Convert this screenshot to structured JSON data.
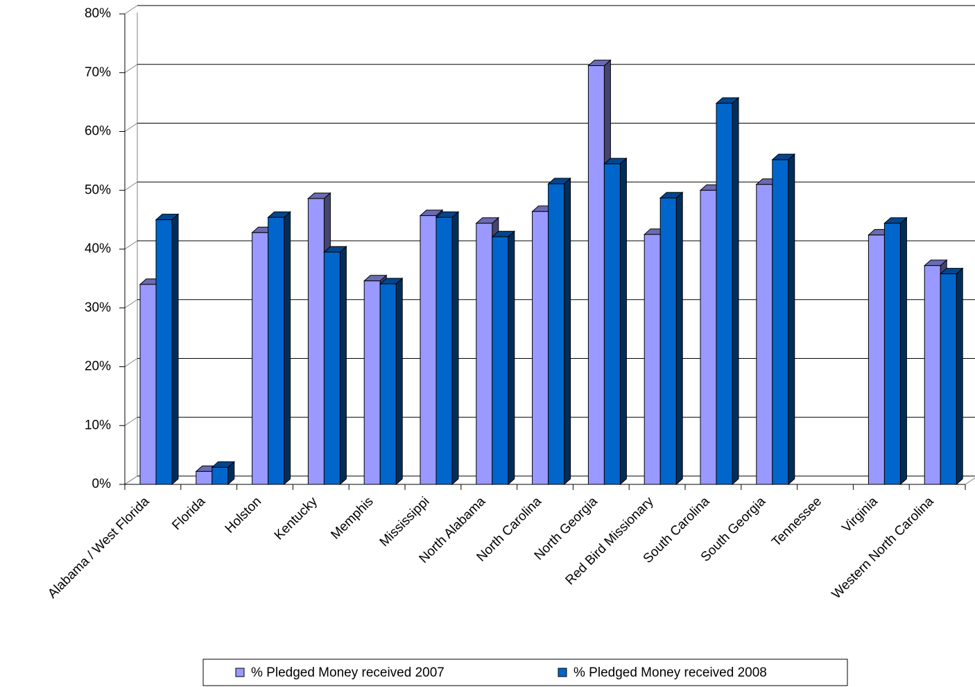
{
  "chart_data": {
    "type": "bar3d",
    "categories": [
      "Alabama / West Florida",
      "Florida",
      "Holston",
      "Kentucky",
      "Memphis",
      "Mississippi",
      "North Alabama",
      "North Carolina",
      "North Georgia",
      "Red Bird Missionary",
      "South Carolina",
      "South Georgia",
      "Tennessee",
      "Virginia",
      "Western North Carolina"
    ],
    "series": [
      {
        "name": "% Pledged Money received 2007",
        "color": "#9999ff",
        "values": [
          34.0,
          2.2,
          42.8,
          48.6,
          34.6,
          45.7,
          44.4,
          46.4,
          71.2,
          42.5,
          50.0,
          51.0,
          null,
          42.4,
          37.2
        ]
      },
      {
        "name": "% Pledged Money received 2008",
        "color": "#0066cc",
        "values": [
          45.0,
          2.9,
          45.4,
          39.5,
          34.1,
          45.4,
          42.1,
          51.1,
          54.5,
          48.7,
          64.8,
          55.2,
          null,
          44.4,
          35.8
        ]
      }
    ],
    "ylim": [
      0,
      80
    ],
    "yticks": [
      {
        "value": 0,
        "label": "0%"
      },
      {
        "value": 10,
        "label": "10%"
      },
      {
        "value": 20,
        "label": "20%"
      },
      {
        "value": 30,
        "label": "30%"
      },
      {
        "value": 40,
        "label": "40%"
      },
      {
        "value": 50,
        "label": "50%"
      },
      {
        "value": 60,
        "label": "60%"
      },
      {
        "value": 70,
        "label": "70%"
      },
      {
        "value": 80,
        "label": "80%"
      }
    ],
    "grid": true,
    "legend": "bottom"
  }
}
